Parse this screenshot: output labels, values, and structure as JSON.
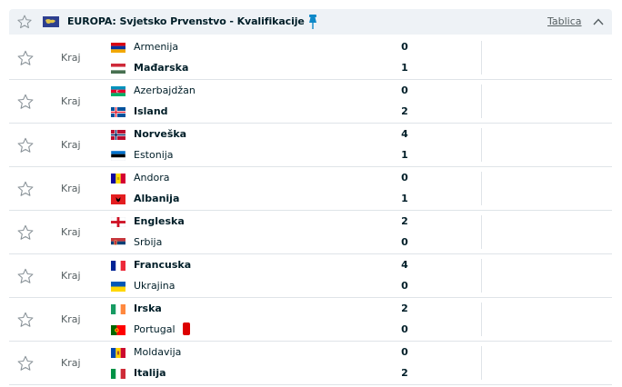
{
  "header": {
    "league": "EUROPA: Svjetsko Prvenstvo - Kvalifikacije",
    "standings_link": "Tablica",
    "favorite_icon": "star-outline-icon",
    "pin_icon": "pin-icon",
    "collapse_icon": "chevron-up-icon",
    "pin_color": "#0f89c8"
  },
  "matches": [
    {
      "status": "Kraj",
      "home": {
        "name": "Armenija",
        "flag": "armenia",
        "score": "0",
        "win": false
      },
      "away": {
        "name": "Mađarska",
        "flag": "hungary",
        "score": "1",
        "win": true
      }
    },
    {
      "status": "Kraj",
      "home": {
        "name": "Azerbajdžan",
        "flag": "azerbaijan",
        "score": "0",
        "win": false
      },
      "away": {
        "name": "Island",
        "flag": "iceland",
        "score": "2",
        "win": true
      }
    },
    {
      "status": "Kraj",
      "home": {
        "name": "Norveška",
        "flag": "norway",
        "score": "4",
        "win": true
      },
      "away": {
        "name": "Estonija",
        "flag": "estonia",
        "score": "1",
        "win": false
      }
    },
    {
      "status": "Kraj",
      "home": {
        "name": "Andora",
        "flag": "andorra",
        "score": "0",
        "win": false
      },
      "away": {
        "name": "Albanija",
        "flag": "albania",
        "score": "1",
        "win": true
      }
    },
    {
      "status": "Kraj",
      "home": {
        "name": "Engleska",
        "flag": "england",
        "score": "2",
        "win": true
      },
      "away": {
        "name": "Srbija",
        "flag": "serbia",
        "score": "0",
        "win": false
      }
    },
    {
      "status": "Kraj",
      "home": {
        "name": "Francuska",
        "flag": "france",
        "score": "4",
        "win": true
      },
      "away": {
        "name": "Ukrajina",
        "flag": "ukraine",
        "score": "0",
        "win": false
      }
    },
    {
      "status": "Kraj",
      "home": {
        "name": "Irska",
        "flag": "ireland",
        "score": "2",
        "win": true
      },
      "away": {
        "name": "Portugal",
        "flag": "portugal",
        "score": "0",
        "win": false,
        "red_card": true
      }
    },
    {
      "status": "Kraj",
      "home": {
        "name": "Moldavija",
        "flag": "moldova",
        "score": "0",
        "win": false
      },
      "away": {
        "name": "Italija",
        "flag": "italy",
        "score": "2",
        "win": true
      }
    }
  ]
}
